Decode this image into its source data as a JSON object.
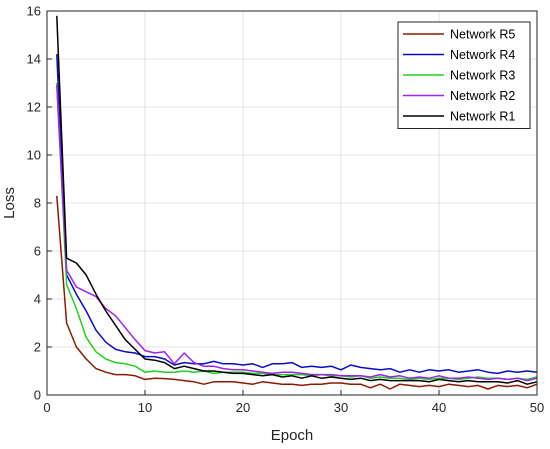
{
  "chart_data": {
    "type": "line",
    "xlabel": "Epoch",
    "ylabel": "Loss",
    "xlim": [
      0,
      50
    ],
    "ylim": [
      0,
      16
    ],
    "xticks": [
      0,
      10,
      20,
      30,
      40,
      50
    ],
    "yticks": [
      0,
      2,
      4,
      6,
      8,
      10,
      12,
      14,
      16
    ],
    "grid": true,
    "legend_position": "top-right",
    "x": [
      1,
      2,
      3,
      4,
      5,
      6,
      7,
      8,
      9,
      10,
      11,
      12,
      13,
      14,
      15,
      16,
      17,
      18,
      19,
      20,
      21,
      22,
      23,
      24,
      25,
      26,
      27,
      28,
      29,
      30,
      31,
      32,
      33,
      34,
      35,
      36,
      37,
      38,
      39,
      40,
      41,
      42,
      43,
      44,
      45,
      46,
      47,
      48,
      49,
      50
    ],
    "series": [
      {
        "name": "Network R5",
        "color": "#8b1a00",
        "values": [
          8.3,
          3.0,
          2.0,
          1.5,
          1.1,
          0.95,
          0.85,
          0.85,
          0.8,
          0.65,
          0.7,
          0.68,
          0.65,
          0.6,
          0.55,
          0.45,
          0.55,
          0.55,
          0.55,
          0.5,
          0.45,
          0.55,
          0.5,
          0.45,
          0.45,
          0.4,
          0.45,
          0.45,
          0.5,
          0.5,
          0.45,
          0.45,
          0.3,
          0.45,
          0.25,
          0.45,
          0.4,
          0.35,
          0.4,
          0.35,
          0.45,
          0.4,
          0.35,
          0.4,
          0.25,
          0.4,
          0.35,
          0.4,
          0.3,
          0.45
        ]
      },
      {
        "name": "Network R4",
        "color": "#0a0ac8",
        "values": [
          14.2,
          5.0,
          4.2,
          3.5,
          2.7,
          2.2,
          1.9,
          1.8,
          1.75,
          1.6,
          1.6,
          1.5,
          1.25,
          1.35,
          1.3,
          1.3,
          1.4,
          1.3,
          1.3,
          1.25,
          1.3,
          1.15,
          1.3,
          1.3,
          1.35,
          1.15,
          1.2,
          1.15,
          1.2,
          1.05,
          1.25,
          1.15,
          1.1,
          1.05,
          1.1,
          0.95,
          1.05,
          0.95,
          1.05,
          1.0,
          1.05,
          0.95,
          1.0,
          1.05,
          0.95,
          0.9,
          1.0,
          0.95,
          1.0,
          0.95
        ]
      },
      {
        "name": "Network R3",
        "color": "#22d022",
        "values": [
          13.0,
          4.6,
          3.6,
          2.4,
          1.8,
          1.5,
          1.35,
          1.3,
          1.2,
          0.95,
          1.0,
          0.95,
          0.95,
          1.0,
          0.95,
          1.0,
          0.9,
          0.95,
          0.95,
          0.95,
          0.9,
          0.9,
          0.85,
          0.85,
          0.85,
          0.85,
          0.8,
          0.85,
          0.8,
          0.8,
          0.75,
          0.8,
          0.7,
          0.75,
          0.7,
          0.7,
          0.65,
          0.7,
          0.65,
          0.7,
          0.7,
          0.65,
          0.7,
          0.75,
          0.7,
          0.7,
          0.65,
          0.7,
          0.65,
          0.75
        ]
      },
      {
        "name": "Network R2",
        "color": "#a020f0",
        "values": [
          12.9,
          5.2,
          4.5,
          4.3,
          4.1,
          3.6,
          3.3,
          2.8,
          2.3,
          1.85,
          1.75,
          1.8,
          1.3,
          1.75,
          1.35,
          1.2,
          1.2,
          1.1,
          1.05,
          1.05,
          1.0,
          0.95,
          0.9,
          0.95,
          0.95,
          0.9,
          0.85,
          0.85,
          0.85,
          0.8,
          0.8,
          0.8,
          0.75,
          0.85,
          0.75,
          0.8,
          0.7,
          0.75,
          0.7,
          0.8,
          0.7,
          0.7,
          0.75,
          0.7,
          0.65,
          0.7,
          0.65,
          0.7,
          0.6,
          0.7
        ]
      },
      {
        "name": "Network R1",
        "color": "#000000",
        "values": [
          15.8,
          5.7,
          5.5,
          5.0,
          4.2,
          3.5,
          2.9,
          2.3,
          1.9,
          1.5,
          1.45,
          1.35,
          1.1,
          1.2,
          1.1,
          1.0,
          1.0,
          0.95,
          0.9,
          0.9,
          0.85,
          0.8,
          0.85,
          0.75,
          0.8,
          0.7,
          0.8,
          0.7,
          0.75,
          0.7,
          0.65,
          0.7,
          0.6,
          0.65,
          0.6,
          0.6,
          0.6,
          0.6,
          0.55,
          0.65,
          0.6,
          0.55,
          0.6,
          0.55,
          0.55,
          0.55,
          0.5,
          0.6,
          0.45,
          0.55
        ]
      }
    ]
  }
}
